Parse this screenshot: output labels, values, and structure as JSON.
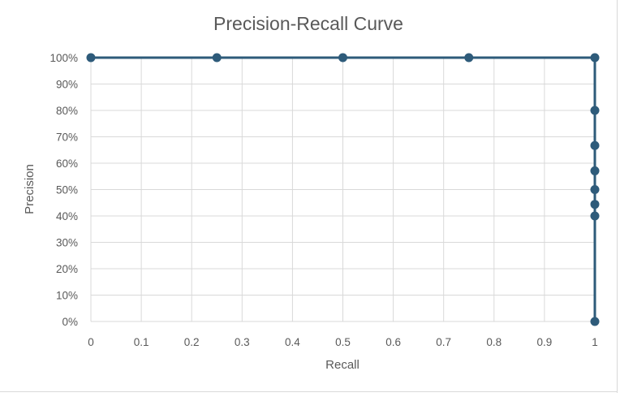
{
  "chart_data": {
    "type": "line",
    "title": "Precision-Recall Curve",
    "xlabel": "Recall",
    "ylabel": "Precision",
    "xlim": [
      0,
      1
    ],
    "ylim": [
      0,
      1
    ],
    "x_ticks": [
      0,
      0.1,
      0.2,
      0.3,
      0.4,
      0.5,
      0.6,
      0.7,
      0.8,
      0.9,
      1
    ],
    "x_tick_labels": [
      "0",
      "0.1",
      "0.2",
      "0.3",
      "0.4",
      "0.5",
      "0.6",
      "0.7",
      "0.8",
      "0.9",
      "1"
    ],
    "y_ticks": [
      0,
      0.1,
      0.2,
      0.3,
      0.4,
      0.5,
      0.6,
      0.7,
      0.8,
      0.9,
      1
    ],
    "y_tick_labels": [
      "0%",
      "10%",
      "20%",
      "30%",
      "40%",
      "50%",
      "60%",
      "70%",
      "80%",
      "90%",
      "100%"
    ],
    "grid": true,
    "legend": "none",
    "markers": true,
    "series": [
      {
        "x": [
          0,
          0.25,
          0.5,
          0.75,
          1,
          1,
          1,
          1,
          1,
          1,
          1,
          1
        ],
        "y": [
          1,
          1,
          1,
          1,
          1,
          0.8,
          0.667,
          0.571,
          0.5,
          0.444,
          0.4,
          0
        ],
        "color": "#2e5b7a"
      }
    ],
    "gridline_color": "#d9d9d9"
  }
}
